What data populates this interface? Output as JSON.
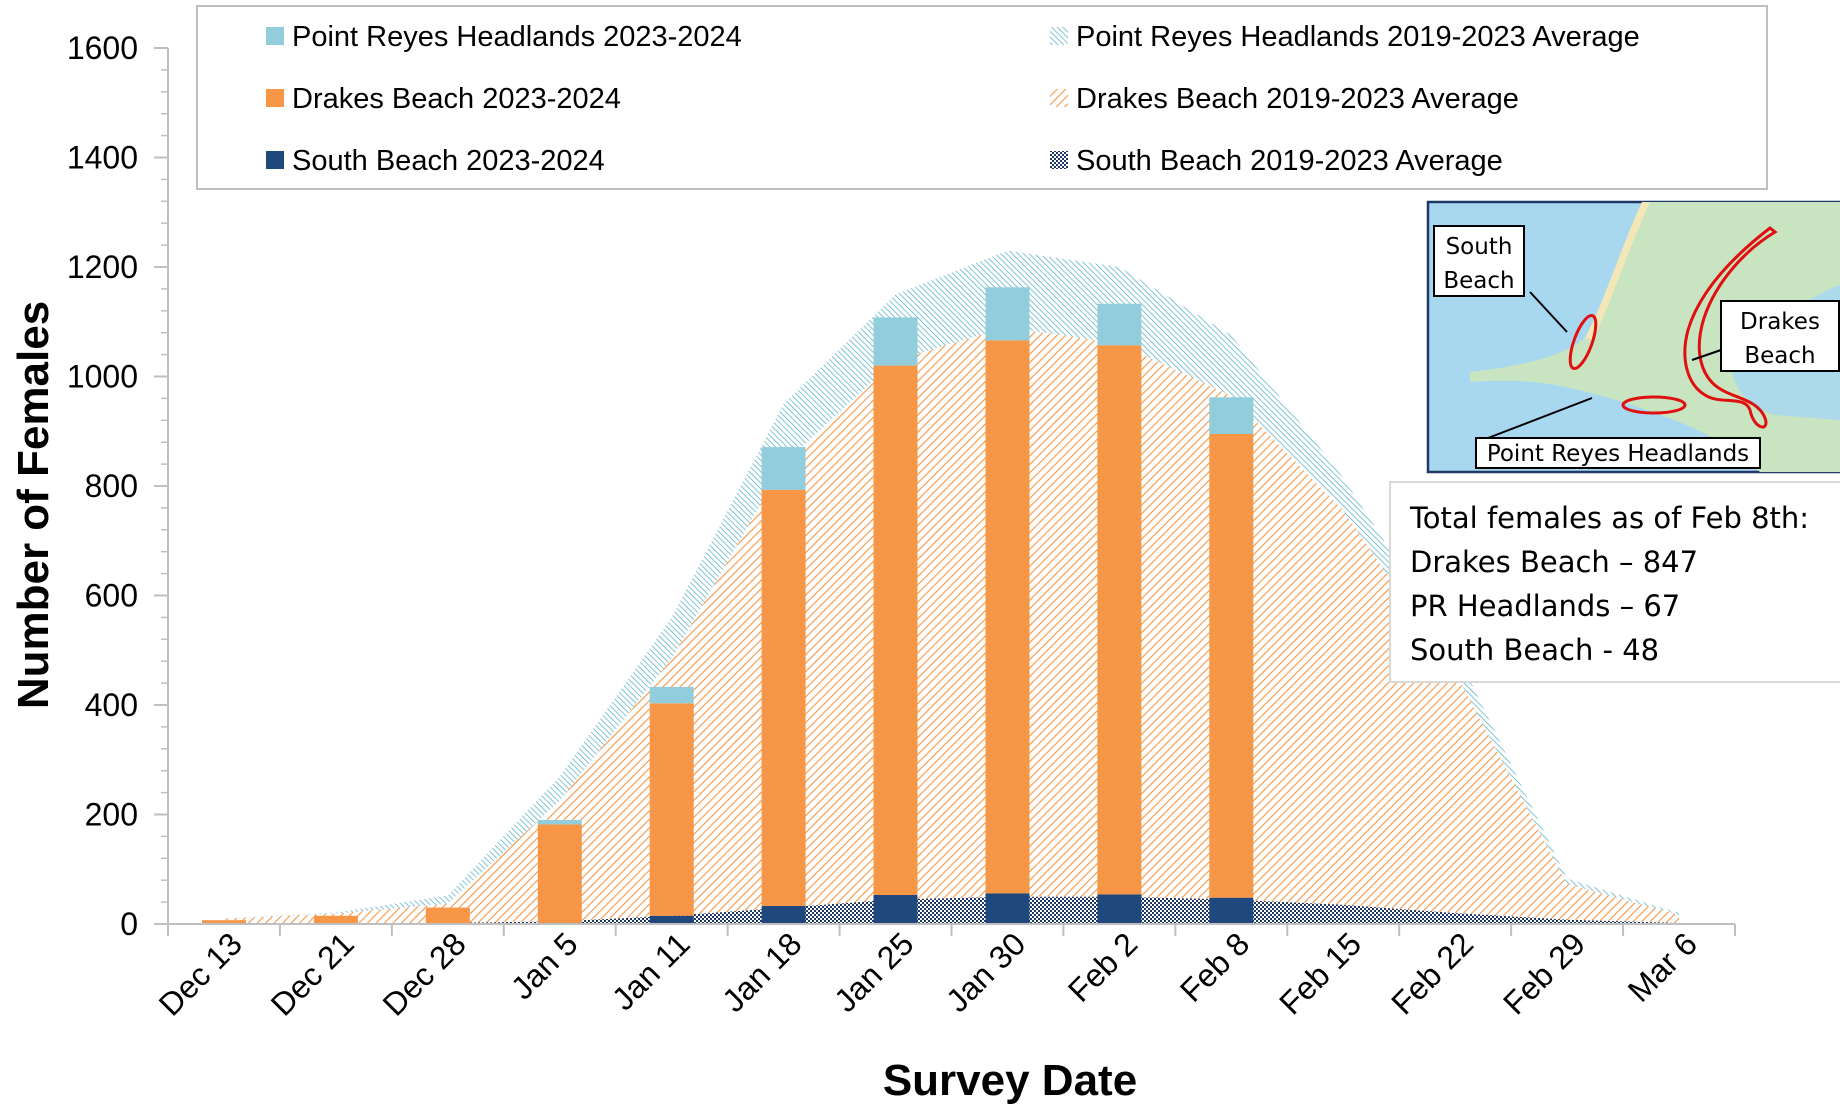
{
  "chart_data": {
    "type": "bar",
    "title": "",
    "xlabel": "Survey Date",
    "ylabel": "Number of Females",
    "ylim": [
      0,
      1600
    ],
    "yticks": [
      0,
      200,
      400,
      600,
      800,
      1000,
      1200,
      1400,
      1600
    ],
    "categories": [
      "Dec 13",
      "Dec 21",
      "Dec 28",
      "Jan 5",
      "Jan 11",
      "Jan 18",
      "Jan 25",
      "Jan 30",
      "Feb 2",
      "Feb 8",
      "Feb 15",
      "Feb 22",
      "Feb 29",
      "Mar 6"
    ],
    "bar_series": [
      {
        "name": "South Beach 2023-2024",
        "color": "#1f497d",
        "values": [
          0,
          0,
          0,
          2,
          15,
          33,
          53,
          56,
          54,
          48,
          null,
          null,
          null,
          null
        ]
      },
      {
        "name": "Drakes Beach 2023-2024",
        "color": "#f79646",
        "values": [
          7,
          15,
          30,
          180,
          388,
          760,
          967,
          1010,
          1003,
          847,
          null,
          null,
          null,
          null
        ]
      },
      {
        "name": "Point Reyes Headlands 2023-2024",
        "color": "#92cddc",
        "values": [
          0,
          0,
          0,
          8,
          30,
          78,
          88,
          97,
          76,
          67,
          null,
          null,
          null,
          null
        ]
      }
    ],
    "area_series": [
      {
        "name": "South Beach 2019-2023 Average",
        "color": "#1f3864",
        "pattern": "dots",
        "values": [
          0,
          1,
          2,
          5,
          15,
          30,
          45,
          50,
          50,
          45,
          35,
          20,
          8,
          2
        ]
      },
      {
        "name": "Drakes Beach 2019-2023 Average",
        "color": "#f79646",
        "pattern": "diagonal",
        "values": [
          10,
          18,
          35,
          220,
          470,
          810,
          985,
          1040,
          1010,
          920,
          720,
          440,
          65,
          15
        ]
      },
      {
        "name": "Point Reyes Headlands 2019-2023 Average",
        "color": "#4bacc6",
        "pattern": "dense-diagonal",
        "values": [
          0,
          2,
          15,
          45,
          75,
          110,
          120,
          140,
          140,
          110,
          60,
          40,
          10,
          3
        ]
      }
    ],
    "legend": {
      "position": "top",
      "entries": [
        "Point Reyes Headlands 2023-2024",
        "Point Reyes Headlands 2019-2023 Average",
        "Drakes Beach 2023-2024",
        "Drakes Beach 2019-2023 Average",
        "South Beach 2023-2024",
        "South Beach 2019-2023 Average"
      ]
    },
    "grid": false
  },
  "annotation": {
    "lines": [
      "Total females as of Feb 8th:",
      "Drakes Beach – 847",
      "PR Headlands – 67",
      "South Beach - 48"
    ]
  },
  "inset_map": {
    "labels": {
      "south_beach_line1": "South",
      "south_beach_line2": "Beach",
      "drakes_beach_line1": "Drakes",
      "drakes_beach_line2": "Beach",
      "headlands": "Point Reyes Headlands"
    },
    "colors": {
      "water": "#a8d8f0",
      "land": "#c8e4c0",
      "outline": "#e01010"
    }
  }
}
